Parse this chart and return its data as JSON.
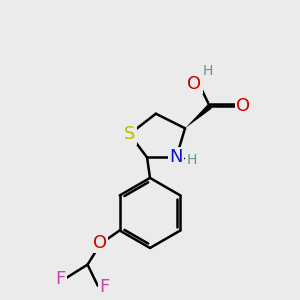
{
  "bg_color": "#ebebeb",
  "atom_colors": {
    "C": "#000000",
    "H": "#5a9a8a",
    "O": "#cc0000",
    "N": "#1010cc",
    "S": "#bbbb00",
    "F": "#cc44aa"
  },
  "bond_color": "#000000",
  "bond_width": 1.8,
  "font_size_atom": 13,
  "font_size_small": 10,
  "figsize": [
    3.0,
    3.0
  ],
  "dpi": 100
}
